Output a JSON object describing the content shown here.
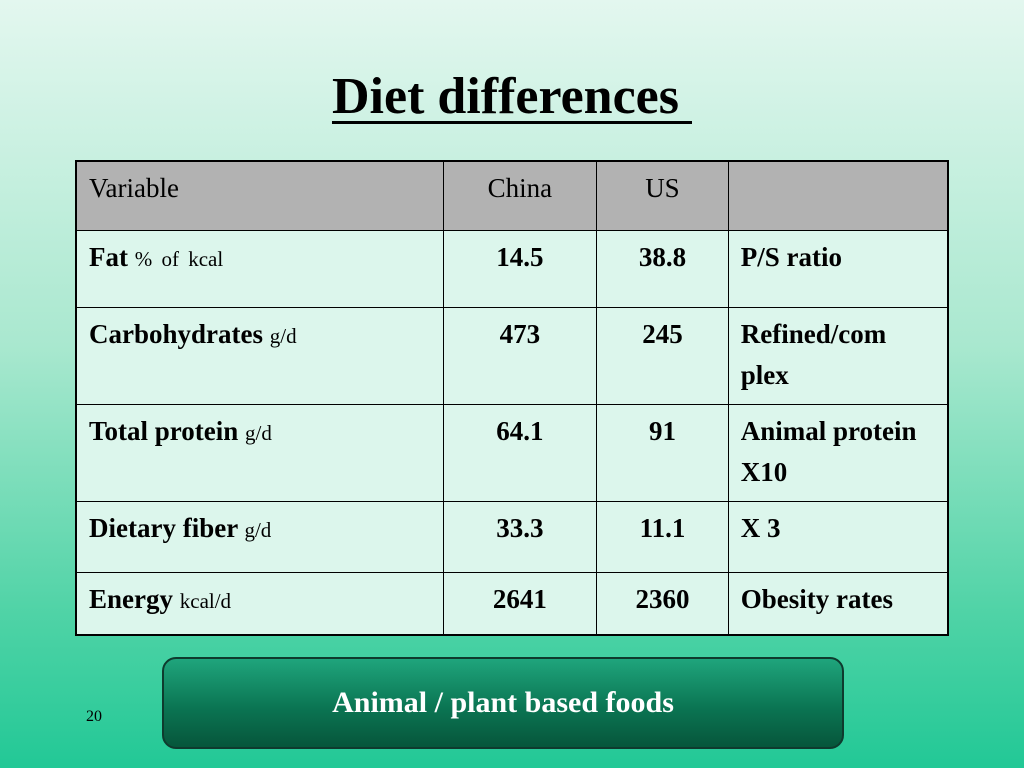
{
  "slide": {
    "title": "Diet differences ",
    "page_number": "20",
    "callout": "Animal / plant based foods"
  },
  "table": {
    "headers": [
      "Variable",
      "China",
      "US",
      ""
    ],
    "rows": [
      {
        "label": "Fat",
        "unit": "% of  kcal",
        "china": "14.5",
        "us": "38.8",
        "note": "P/S ratio"
      },
      {
        "label": "Carbohydrates",
        "unit": "g/d",
        "china": "473",
        "us": "245",
        "note": "Refined/com plex"
      },
      {
        "label": "Total protein",
        "unit": "g/d",
        "china": "64.1",
        "us": "91",
        "note": "Animal protein X10"
      },
      {
        "label": "Dietary fiber",
        "unit": "g/d",
        "china": "33.3",
        "us": "11.1",
        "note": "X 3"
      },
      {
        "label": "Energy",
        "unit": "kcal/d",
        "china": "2641",
        "us": "2360",
        "note": "Obesity rates"
      }
    ]
  },
  "colors": {
    "header_bg": "#b2b2b2",
    "cell_bg": "#dcf6ec",
    "callout_bg": "#0b7553"
  }
}
